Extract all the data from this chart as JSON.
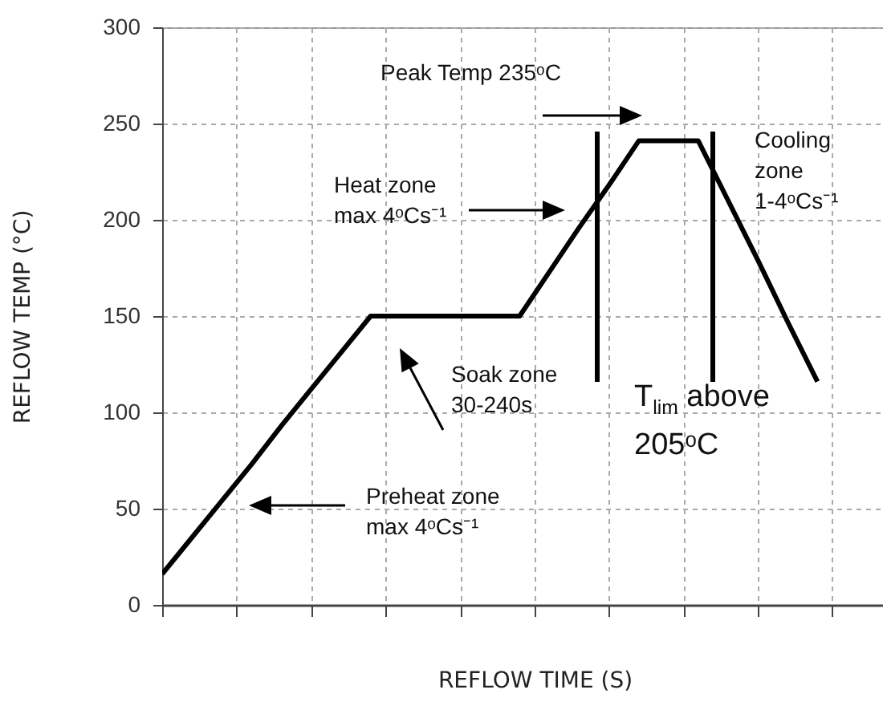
{
  "chart_data": {
    "type": "line",
    "xlabel": "REFLOW TIME (S)",
    "ylabel": "REFLOW TEMP (°C)",
    "categories": [
      null,
      null,
      null,
      null,
      null,
      null,
      null,
      null,
      null,
      null,
      null,
      null,
      null,
      null,
      null,
      null,
      null,
      null,
      null,
      null,
      null,
      null,
      null,
      null,
      null
    ],
    "ylim": [
      0,
      300
    ],
    "yticks": [
      0,
      50,
      100,
      150,
      200,
      250,
      300
    ],
    "tick_labels": "y",
    "grid": true,
    "series": [
      {
        "color": "#000000",
        "values": [
          16,
          35,
          54,
          73,
          93,
          112,
          131,
          150,
          150,
          150,
          150,
          150,
          150,
          173,
          196,
          218,
          241,
          241,
          241,
          210,
          179,
          147,
          116,
          null,
          null
        ]
      }
    ],
    "annotations": [
      "Peak Temp 235ᵒC",
      "Heat zone\nmax 4ᵒCs⁻¹",
      "Soak zone\n30-240s",
      "T$_{lim}$ above\n205ᵒC",
      "Cooling\nzone\n1-4ᵒCs⁻¹",
      "Preheat zone\nmax 4ᵒCs⁻¹"
    ]
  }
}
